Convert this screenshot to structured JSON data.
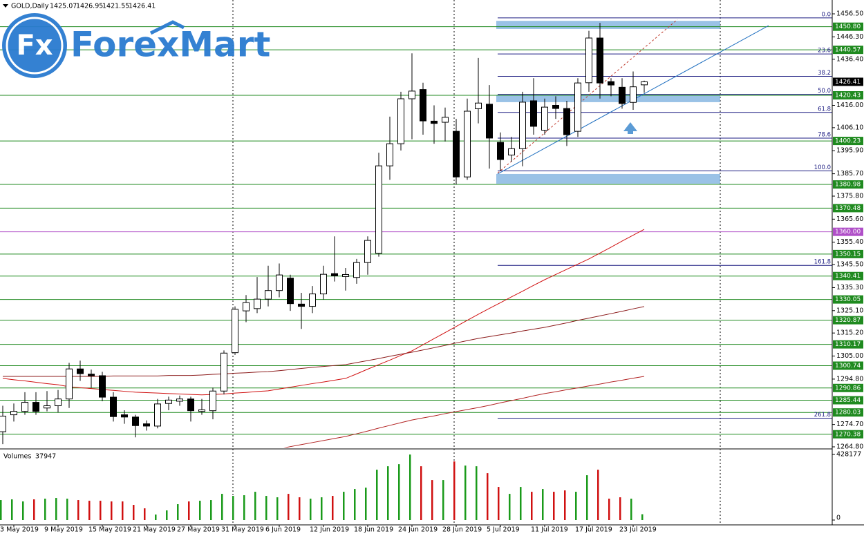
{
  "logo": {
    "mark": "Fx",
    "name": "ForexMart"
  },
  "chart_data": [
    {
      "type": "candlestick",
      "title": "GOLD,Daily",
      "categories": [
        null,
        "3 May 2019",
        null,
        null,
        null,
        "9 May 2019",
        null,
        null,
        null,
        "15 May 2019",
        null,
        null,
        null,
        "21 May 2019",
        null,
        null,
        null,
        "27 May 2019",
        null,
        null,
        null,
        "31 May 2019",
        null,
        null,
        null,
        "6 Jun 2019",
        null,
        null,
        null,
        "12 Jun 2019",
        null,
        null,
        null,
        "18 Jun 2019",
        null,
        null,
        null,
        "24 Jun 2019",
        null,
        null,
        null,
        "28 Jun 2019",
        null,
        null,
        null,
        "5 Jul 2019",
        null,
        null,
        null,
        "11 Jul 2019",
        null,
        null,
        null,
        "17 Jul 2019",
        null,
        null,
        null,
        "23 Jul 2019",
        null
      ],
      "open": [
        1271.5,
        1279,
        1280.5,
        1284.5,
        1282,
        1283,
        1286,
        1299.3,
        1297,
        1296.3,
        1286.8,
        1279,
        1278,
        1275,
        1274,
        1284,
        1285,
        1286,
        1280.5,
        1280.8,
        1289.5,
        1306.5,
        1325,
        1326,
        1330.2,
        1334,
        1339.5,
        1328,
        1327,
        1332.5,
        1341.5,
        1340.2,
        1339.8,
        1346.4,
        1350.5,
        1389.2,
        1399,
        1418.9,
        1423,
        1409,
        1408.5,
        1404.5,
        1384.3,
        1414.5,
        1416.5,
        1399.6,
        1394,
        1396.8,
        1418,
        1405,
        1416,
        1414.6,
        1404.5,
        1426,
        1445.8,
        1426.5,
        1424,
        1417.3,
        1425.07
      ],
      "high": [
        1283,
        1284,
        1289,
        1289,
        1289.5,
        1290,
        1302,
        1303,
        1299,
        1298,
        1289,
        1281,
        1279,
        1276.5,
        1286,
        1287,
        1287.5,
        1287,
        1286,
        1291,
        1307.5,
        1327,
        1332,
        1340,
        1345,
        1346,
        1341,
        1333,
        1336,
        1345,
        1358,
        1344,
        1348,
        1358,
        1395,
        1411,
        1422,
        1439,
        1426,
        1416,
        1415,
        1410,
        1419,
        1437,
        1425,
        1404,
        1402,
        1422,
        1428,
        1419,
        1420,
        1418,
        1428,
        1449,
        1452.5,
        1428,
        1428,
        1431,
        1426.95
      ],
      "low": [
        1266,
        1276,
        1279,
        1279,
        1280.5,
        1280,
        1282,
        1294,
        1291,
        1285,
        1276,
        1275,
        1269,
        1272,
        1273,
        1281,
        1283,
        1276,
        1279,
        1277,
        1288,
        1305.5,
        1320,
        1324,
        1327,
        1331,
        1325,
        1317,
        1324,
        1330,
        1338,
        1334,
        1337,
        1341,
        1349,
        1383,
        1396,
        1401,
        1403,
        1399,
        1400,
        1381,
        1383,
        1408,
        1388,
        1387,
        1391,
        1389,
        1403,
        1403,
        1410,
        1398,
        1402,
        1422,
        1419,
        1420,
        1414.5,
        1414,
        1421.55
      ],
      "close": [
        1278.4,
        1280.5,
        1284.5,
        1280.5,
        1283,
        1286,
        1299.3,
        1297.2,
        1296.3,
        1286.8,
        1278.2,
        1278,
        1274.2,
        1274,
        1283.8,
        1285.5,
        1286,
        1280.8,
        1281.2,
        1289.5,
        1306.3,
        1325.7,
        1328.7,
        1330.2,
        1334,
        1340.9,
        1328.2,
        1327,
        1332.5,
        1341.2,
        1340.5,
        1341.1,
        1346.4,
        1356.2,
        1389.2,
        1399,
        1418.9,
        1422.3,
        1409.1,
        1408,
        1410.7,
        1384.3,
        1413.4,
        1417,
        1401.5,
        1392,
        1396.8,
        1417.4,
        1406.7,
        1415.2,
        1414.6,
        1403,
        1425.9,
        1445.8,
        1425.9,
        1425,
        1416.8,
        1424.2,
        1426.41
      ],
      "up_color": "#ffffff",
      "down_color": "#000000",
      "ylim": [
        1264.5,
        1461.1
      ],
      "yticks": [
        {
          "value": 1456.5,
          "label": "1456.50"
        },
        {
          "value": 1446.3,
          "label": "1446.30"
        },
        {
          "value": 1436.4,
          "label": "1436.40"
        },
        {
          "value": 1416,
          "label": "1416.00"
        },
        {
          "value": 1406.1,
          "label": "1406.10"
        },
        {
          "value": 1395.9,
          "label": "1395.90"
        },
        {
          "value": 1385.7,
          "label": "1385.70"
        },
        {
          "value": 1375.8,
          "label": "1375.80"
        },
        {
          "value": 1365.6,
          "label": "1365.60"
        },
        {
          "value": 1355.4,
          "label": "1355.40"
        },
        {
          "value": 1345.5,
          "label": "1345.50"
        },
        {
          "value": 1335.3,
          "label": "1335.30"
        },
        {
          "value": 1325.1,
          "label": "1325.10"
        },
        {
          "value": 1315.2,
          "label": "1315.20"
        },
        {
          "value": 1305,
          "label": "1305.00"
        },
        {
          "value": 1294.8,
          "label": "1294.80"
        },
        {
          "value": 1274.7,
          "label": "1274.70"
        },
        {
          "value": 1264.8,
          "label": "1264.80"
        }
      ],
      "levels": [
        {
          "value": 1450.8,
          "label": "1450.80",
          "color": "#1f8a1f"
        },
        {
          "value": 1440.57,
          "label": "1440.57",
          "color": "#1f8a1f"
        },
        {
          "value": 1420.43,
          "label": "1420.43",
          "color": "#1f8a1f"
        },
        {
          "value": 1400.23,
          "label": "1400.23",
          "color": "#1f8a1f"
        },
        {
          "value": 1380.98,
          "label": "1380.98",
          "color": "#1f8a1f"
        },
        {
          "value": 1370.48,
          "label": "1370.48",
          "color": "#1f8a1f"
        },
        {
          "value": 1360,
          "label": "1360.00",
          "color": "#b04fc8"
        },
        {
          "value": 1350.15,
          "label": "1350.15",
          "color": "#1f8a1f"
        },
        {
          "value": 1340.41,
          "label": "1340.41",
          "color": "#1f8a1f"
        },
        {
          "value": 1330.05,
          "label": "1330.05",
          "color": "#1f8a1f"
        },
        {
          "value": 1320.87,
          "label": "1320.87",
          "color": "#1f8a1f"
        },
        {
          "value": 1310.17,
          "label": "1310.17",
          "color": "#1f8a1f"
        },
        {
          "value": 1300.74,
          "label": "1300.74",
          "color": "#1f8a1f"
        },
        {
          "value": 1290.86,
          "label": "1290.86",
          "color": "#1f8a1f"
        },
        {
          "value": 1285.44,
          "label": "1285.44",
          "color": "#1f8a1f"
        },
        {
          "value": 1280.03,
          "label": "1280.03",
          "color": "#1f8a1f"
        },
        {
          "value": 1270.38,
          "label": "1270.38",
          "color": "#1f8a1f"
        }
      ],
      "fib": {
        "high": 1454.7,
        "low": 1387.0,
        "color": "#1a1a80",
        "levels": [
          {
            "value": 0,
            "label": "0.0"
          },
          {
            "value": 23.6,
            "label": "23.6"
          },
          {
            "value": 38.2,
            "label": "38.2"
          },
          {
            "value": 50,
            "label": "50.0"
          },
          {
            "value": 61.8,
            "label": "61.8"
          },
          {
            "value": 78.6,
            "label": "78.6"
          },
          {
            "value": 100,
            "label": "100.0"
          },
          {
            "value": 161.8,
            "label": "161.8"
          },
          {
            "value": 261.8,
            "label": "261.8"
          }
        ]
      },
      "zones": [
        {
          "from": 1449.8,
          "to": 1453.4
        },
        {
          "from": 1417.4,
          "to": 1420.4
        },
        {
          "from": 1381.3,
          "to": 1385.6
        }
      ],
      "zone_color": "#6fa8dc",
      "trendlines": [
        {
          "from": 1385.6,
          "to": 1451.3,
          "color": "#1f6fc0",
          "dashed": false
        },
        {
          "from": 1386,
          "to": 1454,
          "color": "#c0392b",
          "dashed": true
        }
      ],
      "moving_averages": [
        {
          "color": "#d01010",
          "values": [
            1295.1,
            1294.5,
            1294,
            1293.4,
            1292.8,
            1292.3,
            1291.4,
            1291,
            1290.6,
            1290.2,
            1289.8,
            1289.4,
            1289,
            1288.8,
            1288.6,
            1288.4,
            1288.2,
            1288,
            1287.8,
            1288,
            1288.2,
            1288.6,
            1288.9,
            1289.3,
            1289.6,
            1290.4,
            1291.2,
            1292,
            1292.8,
            1293.5,
            1294.3,
            1295.1,
            1297.1,
            1299.2,
            1301.2,
            1303.2,
            1305.3,
            1307.3,
            1310,
            1312.7,
            1315.4,
            1318.1,
            1320.8,
            1323.5,
            1326.1,
            1328.6,
            1331.2,
            1333.7,
            1336.3,
            1338.8,
            1341.1,
            1343.4,
            1345.7,
            1348,
            1350.6,
            1353.2,
            1355.9,
            1358.5,
            1361.1
          ]
        },
        {
          "color": "#8b1a1a",
          "values": [
            1296,
            1296,
            1296,
            1296,
            1296,
            1296,
            1296,
            1296,
            1296,
            1296,
            1296.2,
            1296.2,
            1296.2,
            1296.2,
            1296.2,
            1296.4,
            1296.4,
            1296.4,
            1296.6,
            1296.9,
            1297.1,
            1297.4,
            1297.6,
            1297.9,
            1298.1,
            1298.5,
            1299,
            1299.5,
            1300,
            1300.4,
            1300.8,
            1301.2,
            1302.1,
            1303,
            1303.9,
            1304.9,
            1305.8,
            1306.7,
            1307.7,
            1308.7,
            1309.7,
            1310.8,
            1311.8,
            1312.8,
            1313.6,
            1314.4,
            1315.2,
            1316.1,
            1316.9,
            1317.7,
            1318.7,
            1319.7,
            1320.8,
            1321.8,
            1322.8,
            1323.8,
            1324.8,
            1325.9,
            1326.9
          ]
        },
        {
          "color": "#b22222",
          "values": [
            null,
            null,
            null,
            null,
            null,
            null,
            null,
            null,
            null,
            null,
            null,
            null,
            null,
            null,
            null,
            null,
            null,
            null,
            null,
            null,
            null,
            null,
            null,
            null,
            null,
            1264,
            1264.9,
            1265.8,
            1266.7,
            1267.6,
            1268.5,
            1269.4,
            1270.6,
            1271.8,
            1273.1,
            1274.3,
            1275.5,
            1276.7,
            1277.6,
            1278.5,
            1279.5,
            1280.4,
            1281.3,
            1282.2,
            1283.2,
            1284.3,
            1285.3,
            1286.3,
            1287.4,
            1288.4,
            1289.2,
            1290.1,
            1290.9,
            1291.8,
            1292.6,
            1293.5,
            1294.3,
            1295.2,
            1296
          ]
        }
      ]
    },
    {
      "type": "bar",
      "title": "Volumes",
      "values": [
        130500,
        135000,
        121500,
        135000,
        139500,
        144000,
        139500,
        130500,
        126000,
        126000,
        121500,
        121500,
        99000,
        76500,
        36000,
        63000,
        103500,
        121500,
        126000,
        130500,
        171000,
        157500,
        162000,
        184500,
        157500,
        148500,
        171000,
        148500,
        139500,
        148500,
        157500,
        184500,
        202500,
        211500,
        328500,
        351000,
        364500,
        427500,
        351000,
        261000,
        261000,
        382500,
        355500,
        351000,
        306000,
        216000,
        171000,
        216000,
        184500,
        202500,
        184500,
        193500,
        184500,
        292500,
        328500,
        139500,
        148500,
        139500,
        37947
      ],
      "up_color": "#1a9a1a",
      "down_color": "#d01010",
      "ylim": [
        0,
        428177
      ],
      "yticks": [
        428177,
        0
      ]
    }
  ]
}
